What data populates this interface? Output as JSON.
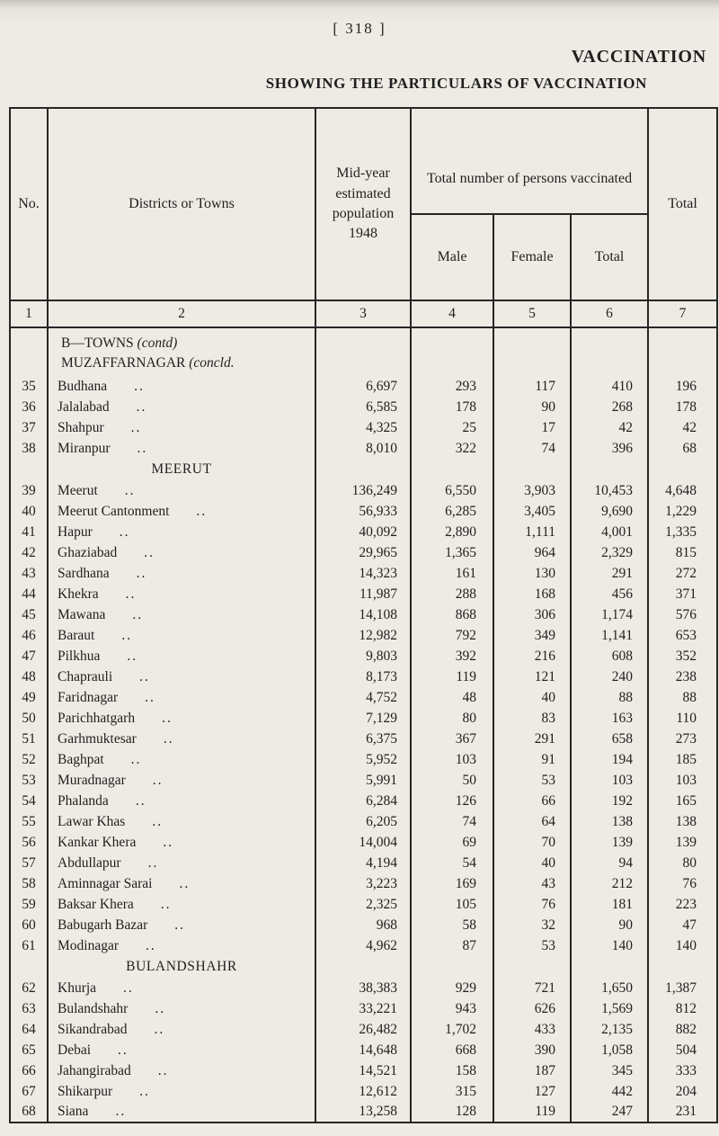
{
  "page": {
    "page_number": "[ 318 ]",
    "title": "VACCINATION",
    "subtitle": "SHOWING THE PARTICULARS OF VACCINATION"
  },
  "table": {
    "leader_dots": "..",
    "headers": {
      "no": "No.",
      "districts": "Districts or Towns",
      "population": "Mid-year estimated population 1948",
      "vaccinated_group": "Total number of persons vaccinated",
      "male": "Male",
      "female": "Female",
      "total": "Total",
      "grand_total": "Total"
    },
    "column_numbers": [
      "1",
      "2",
      "3",
      "4",
      "5",
      "6",
      "7"
    ],
    "intro": {
      "line1_main": "B—TOWNS",
      "line1_paren": "(contd)",
      "line2_main": "MUZAFFARNAGAR",
      "line2_paren": "(concld."
    },
    "rows": [
      {
        "type": "data",
        "no": "35",
        "name": "Budhana",
        "pop": "6,697",
        "male": "293",
        "female": "117",
        "total": "410",
        "grand": "196"
      },
      {
        "type": "data",
        "no": "36",
        "name": "Jalalabad",
        "pop": "6,585",
        "male": "178",
        "female": "90",
        "total": "268",
        "grand": "178"
      },
      {
        "type": "data",
        "no": "37",
        "name": "Shahpur",
        "pop": "4,325",
        "male": "25",
        "female": "17",
        "total": "42",
        "grand": "42"
      },
      {
        "type": "data",
        "no": "38",
        "name": "Miranpur",
        "pop": "8,010",
        "male": "322",
        "female": "74",
        "total": "396",
        "grand": "68"
      },
      {
        "type": "section",
        "label": "MEERUT"
      },
      {
        "type": "data",
        "no": "39",
        "name": "Meerut",
        "pop": "136,249",
        "male": "6,550",
        "female": "3,903",
        "total": "10,453",
        "grand": "4,648"
      },
      {
        "type": "data",
        "no": "40",
        "name": "Meerut Cantonment",
        "pop": "56,933",
        "male": "6,285",
        "female": "3,405",
        "total": "9,690",
        "grand": "1,229"
      },
      {
        "type": "data",
        "no": "41",
        "name": "Hapur",
        "pop": "40,092",
        "male": "2,890",
        "female": "1,111",
        "total": "4,001",
        "grand": "1,335"
      },
      {
        "type": "data",
        "no": "42",
        "name": "Ghaziabad",
        "pop": "29,965",
        "male": "1,365",
        "female": "964",
        "total": "2,329",
        "grand": "815"
      },
      {
        "type": "data",
        "no": "43",
        "name": "Sardhana",
        "pop": "14,323",
        "male": "161",
        "female": "130",
        "total": "291",
        "grand": "272"
      },
      {
        "type": "data",
        "no": "44",
        "name": "Khekra",
        "pop": "11,987",
        "male": "288",
        "female": "168",
        "total": "456",
        "grand": "371"
      },
      {
        "type": "data",
        "no": "45",
        "name": "Mawana",
        "pop": "14,108",
        "male": "868",
        "female": "306",
        "total": "1,174",
        "grand": "576"
      },
      {
        "type": "data",
        "no": "46",
        "name": "Baraut",
        "pop": "12,982",
        "male": "792",
        "female": "349",
        "total": "1,141",
        "grand": "653"
      },
      {
        "type": "data",
        "no": "47",
        "name": "Pilkhua",
        "pop": "9,803",
        "male": "392",
        "female": "216",
        "total": "608",
        "grand": "352"
      },
      {
        "type": "data",
        "no": "48",
        "name": "Chaprauli",
        "pop": "8,173",
        "male": "119",
        "female": "121",
        "total": "240",
        "grand": "238"
      },
      {
        "type": "data",
        "no": "49",
        "name": "Faridnagar",
        "pop": "4,752",
        "male": "48",
        "female": "40",
        "total": "88",
        "grand": "88"
      },
      {
        "type": "data",
        "no": "50",
        "name": "Parichhatgarh",
        "pop": "7,129",
        "male": "80",
        "female": "83",
        "total": "163",
        "grand": "110"
      },
      {
        "type": "data",
        "no": "51",
        "name": "Garhmuktesar",
        "pop": "6,375",
        "male": "367",
        "female": "291",
        "total": "658",
        "grand": "273"
      },
      {
        "type": "data",
        "no": "52",
        "name": "Baghpat",
        "pop": "5,952",
        "male": "103",
        "female": "91",
        "total": "194",
        "grand": "185"
      },
      {
        "type": "data",
        "no": "53",
        "name": "Muradnagar",
        "pop": "5,991",
        "male": "50",
        "female": "53",
        "total": "103",
        "grand": "103"
      },
      {
        "type": "data",
        "no": "54",
        "name": "Phalanda",
        "pop": "6,284",
        "male": "126",
        "female": "66",
        "total": "192",
        "grand": "165"
      },
      {
        "type": "data",
        "no": "55",
        "name": "Lawar Khas",
        "pop": "6,205",
        "male": "74",
        "female": "64",
        "total": "138",
        "grand": "138"
      },
      {
        "type": "data",
        "no": "56",
        "name": "Kankar Khera",
        "pop": "14,004",
        "male": "69",
        "female": "70",
        "total": "139",
        "grand": "139"
      },
      {
        "type": "data",
        "no": "57",
        "name": "Abdullapur",
        "pop": "4,194",
        "male": "54",
        "female": "40",
        "total": "94",
        "grand": "80"
      },
      {
        "type": "data",
        "no": "58",
        "name": "Aminnagar Sarai",
        "pop": "3,223",
        "male": "169",
        "female": "43",
        "total": "212",
        "grand": "76"
      },
      {
        "type": "data",
        "no": "59",
        "name": "Baksar Khera",
        "pop": "2,325",
        "male": "105",
        "female": "76",
        "total": "181",
        "grand": "223"
      },
      {
        "type": "data",
        "no": "60",
        "name": "Babugarh Bazar",
        "pop": "968",
        "male": "58",
        "female": "32",
        "total": "90",
        "grand": "47"
      },
      {
        "type": "data",
        "no": "61",
        "name": "Modinagar",
        "pop": "4,962",
        "male": "87",
        "female": "53",
        "total": "140",
        "grand": "140"
      },
      {
        "type": "section",
        "label": "BULANDSHAHR"
      },
      {
        "type": "data",
        "no": "62",
        "name": "Khurja",
        "pop": "38,383",
        "male": "929",
        "female": "721",
        "total": "1,650",
        "grand": "1,387"
      },
      {
        "type": "data",
        "no": "63",
        "name": "Bulandshahr",
        "pop": "33,221",
        "male": "943",
        "female": "626",
        "total": "1,569",
        "grand": "812"
      },
      {
        "type": "data",
        "no": "64",
        "name": "Sikandrabad",
        "pop": "26,482",
        "male": "1,702",
        "female": "433",
        "total": "2,135",
        "grand": "882"
      },
      {
        "type": "data",
        "no": "65",
        "name": "Debai",
        "pop": "14,648",
        "male": "668",
        "female": "390",
        "total": "1,058",
        "grand": "504"
      },
      {
        "type": "data",
        "no": "66",
        "name": "Jahangirabad",
        "pop": "14,521",
        "male": "158",
        "female": "187",
        "total": "345",
        "grand": "333"
      },
      {
        "type": "data",
        "no": "67",
        "name": "Shikarpur",
        "pop": "12,612",
        "male": "315",
        "female": "127",
        "total": "442",
        "grand": "204"
      },
      {
        "type": "data",
        "no": "68",
        "name": "Siana",
        "pop": "13,258",
        "male": "128",
        "female": "119",
        "total": "247",
        "grand": "231"
      }
    ]
  }
}
